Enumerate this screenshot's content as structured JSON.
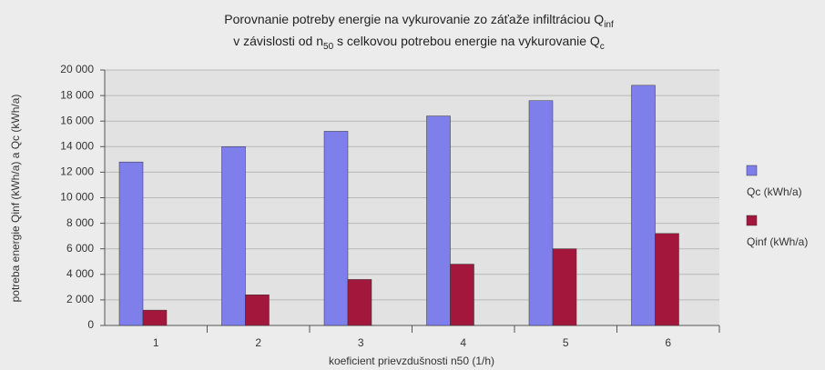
{
  "chart_data": {
    "type": "bar",
    "title": [
      [
        "Porovnanie potreby energie na vykurovanie zo záťaže infiltráciou Q",
        "inf"
      ],
      [
        "v závislosti od n",
        "50",
        " s celkovou potrebou energie na vykurovanie Q",
        "c"
      ]
    ],
    "y_label": "potreba energie Qinf (kWh/a) a Qc (kWh/a)",
    "x_label": "koeficient prievzdušnosti n50 (1/h)",
    "categories": [
      "1",
      "2",
      "3",
      "4",
      "5",
      "6"
    ],
    "series": [
      {
        "name": "Qc (kWh/a)",
        "color": "#7f7fec",
        "values": [
          12800,
          14000,
          15200,
          16400,
          17600,
          18800
        ]
      },
      {
        "name": "Qinf (kWh/a)",
        "color": "#a3173c",
        "values": [
          1200,
          2400,
          3600,
          4800,
          6000,
          7200
        ]
      }
    ],
    "ylim": [
      0,
      20000
    ],
    "yticks": [
      0,
      {
        "value": 2000,
        "label": "2 000"
      },
      {
        "value": 4000,
        "label": "4 000"
      },
      {
        "value": 6000,
        "label": "6 000"
      },
      {
        "value": 8000,
        "label": "8 000"
      },
      {
        "value": 10000,
        "label": "10 000"
      },
      {
        "value": 12000,
        "label": "12 000"
      },
      {
        "value": 14000,
        "label": "14 000"
      },
      {
        "value": 16000,
        "label": "16 000"
      },
      {
        "value": 18000,
        "label": "18 000"
      },
      {
        "value": 20000,
        "label": "20 000"
      }
    ],
    "grid": true
  }
}
